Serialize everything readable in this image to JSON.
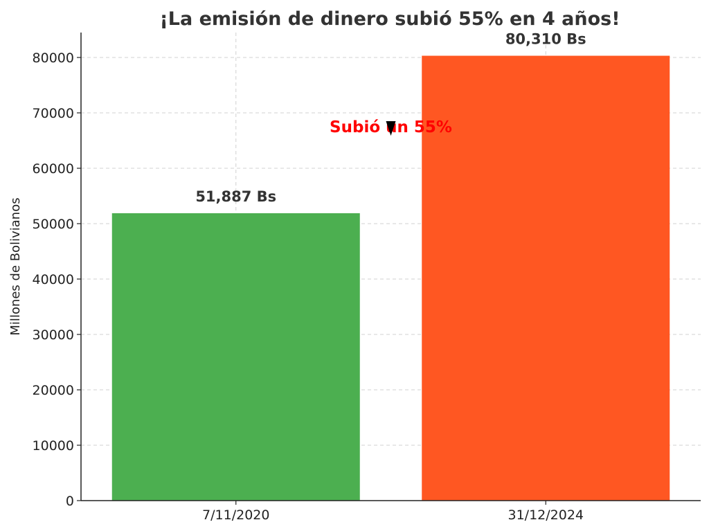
{
  "chart_data": {
    "type": "bar",
    "title": "¡La emisión de dinero subió 55% en 4 años!",
    "xlabel": "",
    "ylabel": "Millones de Bolivianos",
    "categories": [
      "7/11/2020",
      "31/12/2024"
    ],
    "values": [
      51887,
      80310
    ],
    "data_labels": [
      "51,887 Bs",
      "80,310 Bs"
    ],
    "colors": [
      "#4caf50",
      "#ff5722"
    ],
    "ylim": [
      0,
      84500
    ],
    "yticks": [
      0,
      10000,
      20000,
      30000,
      40000,
      50000,
      60000,
      70000,
      80000
    ],
    "grid": true,
    "annotation": {
      "text": "Subió un 55%",
      "color": "#ff0000",
      "y_value": 67500
    }
  }
}
